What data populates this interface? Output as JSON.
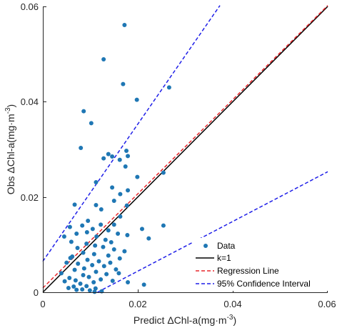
{
  "chart_data": {
    "type": "scatter",
    "xlabel": "Predict ΔChl-a(mg·m",
    "xlabel_exp": "-3",
    "xlabel_end": ")",
    "ylabel": "Obs ΔChl-a(mg·m",
    "ylabel_exp": "-3",
    "ylabel_end": ")",
    "xlim": [
      0,
      0.06
    ],
    "ylim": [
      0,
      0.06
    ],
    "x_ticks": [
      "0",
      "0.02",
      "0.04",
      "0.06"
    ],
    "y_ticks": [
      "0",
      "0.02",
      "0.04",
      "0.06"
    ],
    "grid": false,
    "legend_position": "bottom-right",
    "colors": {
      "data": "#1f77b4",
      "k1": "#000000",
      "regression": "#e8262b",
      "confidence": "#1f1fe8"
    },
    "series": [
      {
        "name": "Data",
        "kind": "scatter",
        "points": [
          [
            0.0172,
            0.0561
          ],
          [
            0.0128,
            0.0489
          ],
          [
            0.0169,
            0.0437
          ],
          [
            0.0266,
            0.043
          ],
          [
            0.0198,
            0.0404
          ],
          [
            0.0086,
            0.038
          ],
          [
            0.0102,
            0.0355
          ],
          [
            0.008,
            0.0303
          ],
          [
            0.0128,
            0.0281
          ],
          [
            0.0146,
            0.0285
          ],
          [
            0.0138,
            0.029
          ],
          [
            0.0176,
            0.0297
          ],
          [
            0.0179,
            0.0286
          ],
          [
            0.0162,
            0.0278
          ],
          [
            0.0174,
            0.0264
          ],
          [
            0.0254,
            0.0251
          ],
          [
            0.0199,
            0.0242
          ],
          [
            0.0112,
            0.0231
          ],
          [
            0.0146,
            0.022
          ],
          [
            0.0179,
            0.0214
          ],
          [
            0.0163,
            0.0206
          ],
          [
            0.015,
            0.0192
          ],
          [
            0.0112,
            0.0183
          ],
          [
            0.0177,
            0.0182
          ],
          [
            0.0123,
            0.0174
          ],
          [
            0.0067,
            0.0184
          ],
          [
            0.0163,
            0.0159
          ],
          [
            0.015,
            0.0142
          ],
          [
            0.0122,
            0.0142
          ],
          [
            0.0095,
            0.015
          ],
          [
            0.0083,
            0.014
          ],
          [
            0.0105,
            0.0133
          ],
          [
            0.0057,
            0.0137
          ],
          [
            0.0209,
            0.0133
          ],
          [
            0.0254,
            0.014
          ],
          [
            0.0138,
            0.013
          ],
          [
            0.0093,
            0.0126
          ],
          [
            0.0071,
            0.0123
          ],
          [
            0.0178,
            0.012
          ],
          [
            0.0045,
            0.0117
          ],
          [
            0.0113,
            0.0117
          ],
          [
            0.0158,
            0.0123
          ],
          [
            0.0223,
            0.0113
          ],
          [
            0.0132,
            0.011
          ],
          [
            0.0144,
            0.0105
          ],
          [
            0.006,
            0.0106
          ],
          [
            0.0092,
            0.0102
          ],
          [
            0.011,
            0.0098
          ],
          [
            0.0127,
            0.0095
          ],
          [
            0.0073,
            0.0093
          ],
          [
            0.015,
            0.009
          ],
          [
            0.0172,
            0.0086
          ],
          [
            0.0085,
            0.0083
          ],
          [
            0.0108,
            0.008
          ],
          [
            0.0138,
            0.0077
          ],
          [
            0.0062,
            0.0075
          ],
          [
            0.0058,
            0.0072
          ],
          [
            0.0162,
            0.0071
          ],
          [
            0.0094,
            0.0068
          ],
          [
            0.0118,
            0.0065
          ],
          [
            0.0142,
            0.0062
          ],
          [
            0.0074,
            0.006
          ],
          [
            0.005,
            0.0062
          ],
          [
            0.0104,
            0.0057
          ],
          [
            0.0129,
            0.0055
          ],
          [
            0.0087,
            0.005
          ],
          [
            0.0154,
            0.0048
          ],
          [
            0.0067,
            0.0047
          ],
          [
            0.0112,
            0.0043
          ],
          [
            0.0039,
            0.004
          ],
          [
            0.0134,
            0.0038
          ],
          [
            0.016,
            0.004
          ],
          [
            0.0085,
            0.0036
          ],
          [
            0.0097,
            0.0032
          ],
          [
            0.0056,
            0.003
          ],
          [
            0.0122,
            0.0027
          ],
          [
            0.0069,
            0.0025
          ],
          [
            0.0147,
            0.0024
          ],
          [
            0.0107,
            0.0021
          ],
          [
            0.0046,
            0.0023
          ],
          [
            0.0079,
            0.0018
          ],
          [
            0.0179,
            0.0021
          ],
          [
            0.0213,
            0.0016
          ],
          [
            0.0092,
            0.0013
          ],
          [
            0.0065,
            0.0012
          ],
          [
            0.0111,
            0.0008
          ],
          [
            0.0083,
            0.0006
          ],
          [
            0.0054,
            0.0009
          ],
          [
            0.0099,
            0.0004
          ],
          [
            0.0071,
            0.0005
          ],
          [
            0.0124,
            0.0002
          ],
          [
            0.0109,
            0.0001
          ]
        ]
      },
      {
        "name": "k=1",
        "kind": "line",
        "dash": "solid",
        "x": [
          0,
          0.06
        ],
        "y": [
          0,
          0.06
        ]
      },
      {
        "name": "Regression Line",
        "kind": "line",
        "dash": "dashed",
        "x": [
          0,
          0.06
        ],
        "y": [
          0.0009,
          0.0602
        ]
      },
      {
        "name": "95% Confidence Interval",
        "kind": "line",
        "dash": "dashed",
        "x": [
          0,
          0.0373
        ],
        "y": [
          0.0065,
          0.0602
        ]
      },
      {
        "name": "95% Confidence Interval lower",
        "kind": "line",
        "dash": "dashed",
        "x": [
          0.0115,
          0.06
        ],
        "y": [
          0,
          0.0253
        ]
      }
    ],
    "legend": [
      {
        "label": "Data",
        "marker": "dot",
        "color_key": "data"
      },
      {
        "label": "k=1",
        "marker": "solid",
        "color_key": "k1"
      },
      {
        "label": "Regression Line",
        "marker": "dashed",
        "color_key": "regression"
      },
      {
        "label": "95% Confidence Interval",
        "marker": "dashed",
        "color_key": "confidence"
      }
    ]
  }
}
